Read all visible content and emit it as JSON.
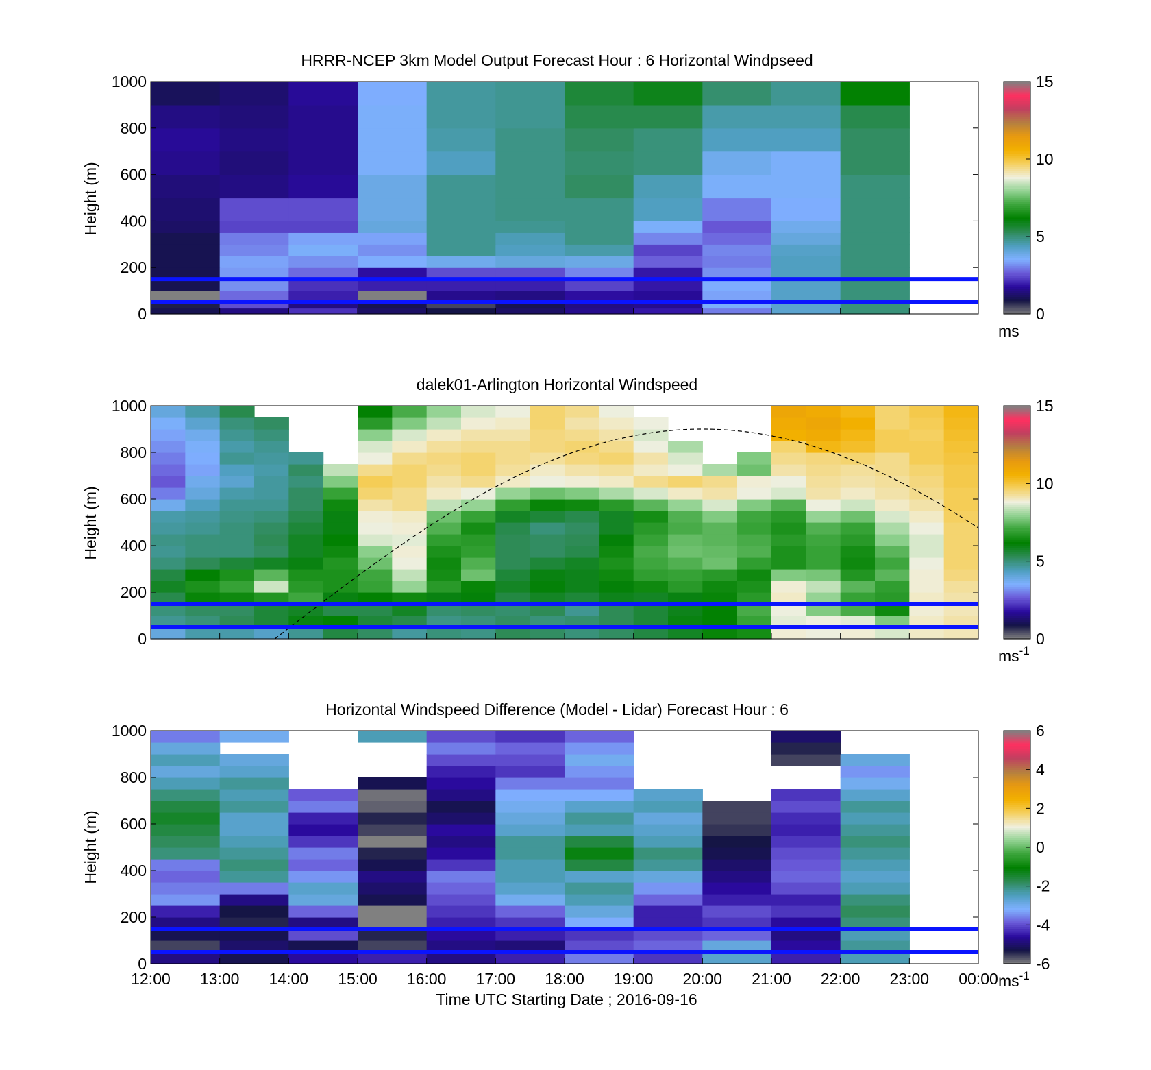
{
  "colormap": {
    "windspeed": [
      "#808080",
      "#141445",
      "#2a0a9e",
      "#6a5ad8",
      "#7fb0ff",
      "#4f9fc0",
      "#2e8b57",
      "#008000",
      "#3aa43a",
      "#8fd18f",
      "#f0f0e0",
      "#f5d060",
      "#f2b000",
      "#e89a10",
      "#b58040",
      "#c04060",
      "#ff3060",
      "#808080"
    ],
    "difference": [
      "#808080",
      "#141445",
      "#2a0a9e",
      "#6a5ad8",
      "#7fb0ff",
      "#4f9fc0",
      "#2e8b57",
      "#008000",
      "#3aa43a",
      "#8fd18f",
      "#f0f0e0",
      "#f5d060",
      "#f2b000",
      "#e89a10",
      "#b58040",
      "#c04060",
      "#ff3060",
      "#808080"
    ]
  },
  "reference_lines": {
    "color": "#0a14ff",
    "heights_m": [
      150,
      50
    ]
  },
  "chart_data": [
    {
      "type": "heatmap",
      "title": "HRRR-NCEP 3km Model Output   Forecast Hour : 6 Horizontal Windpseed",
      "ylabel": "Height (m)",
      "xlabel": "",
      "ylim": [
        0,
        1000
      ],
      "yticks": [
        "0",
        "200",
        "400",
        "600",
        "800",
        "1000"
      ],
      "xticks": [],
      "time_range_hours": [
        12,
        24
      ],
      "colorbar": {
        "range": [
          0,
          15
        ],
        "ticks": [
          "0",
          "5",
          "10",
          "15"
        ],
        "unit": "ms",
        "unit_sup": ""
      },
      "colormap": "windspeed",
      "layer_heights_m": [
        25,
        50,
        100,
        150,
        200,
        250,
        300,
        350,
        400,
        500,
        600,
        700,
        800,
        900,
        1000
      ],
      "times_utc": [
        "12:00",
        "13:00",
        "14:00",
        "15:00",
        "16:00",
        "17:00",
        "18:00",
        "19:00",
        "20:00",
        "21:00",
        "22:00"
      ],
      "values": [
        [
          1.0,
          1.5,
          2.2,
          1.2,
          0.9,
          1.2,
          1.6,
          1.9,
          3.0,
          4.2,
          5.0
        ],
        [
          0.8,
          2.5,
          1.5,
          1.0,
          0.5,
          1.0,
          1.5,
          1.6,
          3.6,
          4.2,
          5.0
        ],
        [
          0.0,
          2.8,
          2.0,
          0.0,
          1.6,
          1.5,
          1.8,
          1.7,
          3.4,
          4.3,
          5.0
        ],
        [
          1.0,
          3.2,
          2.2,
          2.0,
          2.0,
          2.0,
          2.4,
          1.9,
          3.5,
          4.3,
          5.0
        ],
        [
          1.0,
          3.3,
          2.8,
          1.8,
          2.5,
          2.5,
          3.1,
          1.9,
          3.2,
          4.4,
          5.0
        ],
        [
          1.0,
          3.4,
          3.2,
          3.5,
          3.8,
          4.0,
          3.9,
          2.7,
          3.0,
          4.4,
          5.0
        ],
        [
          1.0,
          3.1,
          3.6,
          3.2,
          4.8,
          4.4,
          4.6,
          2.4,
          3.1,
          4.3,
          5.0
        ],
        [
          1.0,
          3.0,
          3.4,
          3.4,
          4.8,
          4.5,
          4.9,
          3.1,
          2.8,
          4.0,
          5.0
        ],
        [
          1.2,
          2.4,
          2.4,
          4.0,
          4.8,
          4.8,
          4.9,
          3.6,
          2.6,
          3.8,
          5.0
        ],
        [
          1.3,
          2.5,
          2.5,
          3.9,
          4.8,
          4.9,
          4.9,
          4.4,
          3.0,
          3.5,
          5.0
        ],
        [
          1.4,
          1.5,
          1.7,
          3.9,
          4.8,
          4.9,
          5.2,
          4.5,
          3.6,
          3.6,
          5.0
        ],
        [
          1.6,
          1.4,
          1.6,
          3.6,
          4.4,
          4.9,
          5.1,
          5.0,
          3.8,
          3.6,
          5.2
        ],
        [
          1.7,
          1.5,
          1.6,
          3.6,
          4.6,
          4.9,
          5.2,
          5.0,
          4.4,
          4.4,
          5.2
        ],
        [
          1.5,
          1.4,
          1.6,
          3.6,
          4.7,
          4.8,
          5.4,
          5.4,
          4.6,
          4.6,
          5.4
        ],
        [
          1.1,
          1.3,
          1.7,
          3.5,
          4.7,
          4.8,
          5.6,
          5.9,
          5.1,
          4.8,
          6.2
        ]
      ]
    },
    {
      "type": "heatmap",
      "title": "dalek01-Arlington  Horizontal Windspeed",
      "ylabel": "Height (m)",
      "xlabel": "",
      "ylim": [
        0,
        1000
      ],
      "yticks": [
        "0",
        "200",
        "400",
        "600",
        "800",
        "1000"
      ],
      "xticks": [],
      "time_range_hours": [
        12,
        24
      ],
      "colorbar": {
        "range": [
          0,
          15
        ],
        "ticks": [
          "0",
          "5",
          "10",
          "15"
        ],
        "unit": "ms",
        "unit_sup": "-1"
      },
      "colormap": "windspeed",
      "layer_heights_m": [
        50,
        100,
        150,
        200,
        250,
        300,
        350,
        400,
        450,
        500,
        550,
        600,
        650,
        700,
        750,
        800,
        850,
        900,
        950,
        1000
      ],
      "times_utc": [
        "12:00",
        "12:30",
        "13:00",
        "13:30",
        "14:00",
        "14:30",
        "15:00",
        "15:30",
        "16:00",
        "16:30",
        "17:00",
        "17:30",
        "18:00",
        "18:30",
        "19:00",
        "19:30",
        "20:00",
        "20:30",
        "21:00",
        "21:30",
        "22:00",
        "22:30",
        "23:00",
        "23:30"
      ],
      "values": [
        [
          4.0,
          4.6,
          4.6,
          4.3,
          4.8,
          5.5,
          5.2,
          4.7,
          5.0,
          4.9,
          5.3,
          5.2,
          5.0,
          5.2,
          5.5,
          5.8,
          6.3,
          6.5,
          8.9,
          8.8,
          8.9,
          8.6,
          9.0,
          9.1
        ],
        [
          4.8,
          5.0,
          5.3,
          5.6,
          6.0,
          6.2,
          5.6,
          5.4,
          4.9,
          5.0,
          5.2,
          5.0,
          5.1,
          5.3,
          5.6,
          6.0,
          6.2,
          7.0,
          8.7,
          8.8,
          8.7,
          7.8,
          9.0,
          9.2
        ],
        [
          5.0,
          5.2,
          5.2,
          5.6,
          5.8,
          5.4,
          5.4,
          5.8,
          5.1,
          5.2,
          5.1,
          5.3,
          4.8,
          5.3,
          5.6,
          5.9,
          6.2,
          7.2,
          8.8,
          7.8,
          7.2,
          6.4,
          8.9,
          9.1
        ],
        [
          5.4,
          6.3,
          6.4,
          6.7,
          7.1,
          6.0,
          6.2,
          6.4,
          6.0,
          6.1,
          5.5,
          5.8,
          5.6,
          5.9,
          5.8,
          6.0,
          6.3,
          6.8,
          9.0,
          8.0,
          7.0,
          6.8,
          9.0,
          9.2
        ],
        [
          5.8,
          6.6,
          7.0,
          8.5,
          6.8,
          6.6,
          7.0,
          8.0,
          6.8,
          6.3,
          5.8,
          6.1,
          5.9,
          6.1,
          6.4,
          6.8,
          6.4,
          6.6,
          8.9,
          8.4,
          7.4,
          6.9,
          8.9,
          9.3
        ],
        [
          5.5,
          6.2,
          6.6,
          7.4,
          6.6,
          6.6,
          7.1,
          8.4,
          6.5,
          7.6,
          5.6,
          6.0,
          5.9,
          6.4,
          6.9,
          7.0,
          6.8,
          6.4,
          7.8,
          7.7,
          6.7,
          7.4,
          8.9,
          9.5
        ],
        [
          5.0,
          5.3,
          5.6,
          5.8,
          6.0,
          6.7,
          7.6,
          8.8,
          6.4,
          7.3,
          5.3,
          5.6,
          5.8,
          6.6,
          7.1,
          7.3,
          7.6,
          6.9,
          6.6,
          7.0,
          6.4,
          7.1,
          8.8,
          9.6
        ],
        [
          4.8,
          5.0,
          5.0,
          5.2,
          5.8,
          6.4,
          7.9,
          8.9,
          6.6,
          6.9,
          5.3,
          5.2,
          5.4,
          6.4,
          7.2,
          7.6,
          7.5,
          7.3,
          6.6,
          7.0,
          6.5,
          7.4,
          8.6,
          9.6
        ],
        [
          4.9,
          5.0,
          5.0,
          5.3,
          5.8,
          6.2,
          8.6,
          8.7,
          6.9,
          6.8,
          5.3,
          5.2,
          5.3,
          6.1,
          7.0,
          7.5,
          7.4,
          7.2,
          6.8,
          7.1,
          6.8,
          7.9,
          8.6,
          9.6
        ],
        [
          4.7,
          4.8,
          5.0,
          5.2,
          5.6,
          6.0,
          8.8,
          8.9,
          7.3,
          6.5,
          5.4,
          5.0,
          5.2,
          5.8,
          6.8,
          7.2,
          7.4,
          7.0,
          6.6,
          7.3,
          7.0,
          8.2,
          8.8,
          9.6
        ],
        [
          4.6,
          4.7,
          4.9,
          5.0,
          5.4,
          6.0,
          8.9,
          9.0,
          7.6,
          7.0,
          5.8,
          5.6,
          5.4,
          5.8,
          6.5,
          7.3,
          7.8,
          7.1,
          6.8,
          8.0,
          7.6,
          8.6,
          9.0,
          9.7
        ],
        [
          3.8,
          4.4,
          4.8,
          4.8,
          5.2,
          6.4,
          9.2,
          9.4,
          8.4,
          8.0,
          6.9,
          6.3,
          6.4,
          6.8,
          7.4,
          8.0,
          8.6,
          7.8,
          7.3,
          8.8,
          8.5,
          9.0,
          9.2,
          9.8
        ],
        [
          3.0,
          4.0,
          4.6,
          4.7,
          5.2,
          7.0,
          9.6,
          9.4,
          9.0,
          8.8,
          8.0,
          7.6,
          7.8,
          8.2,
          8.6,
          9.0,
          9.2,
          8.8,
          8.6,
          9.2,
          9.0,
          9.2,
          9.4,
          9.8
        ],
        [
          2.6,
          3.8,
          4.2,
          4.7,
          5.0,
          7.8,
          9.8,
          9.6,
          9.2,
          9.4,
          9.0,
          8.8,
          8.9,
          9.0,
          9.4,
          9.6,
          9.4,
          8.9,
          8.8,
          9.3,
          9.2,
          9.3,
          9.5,
          9.9
        ],
        [
          2.8,
          3.4,
          4.4,
          4.6,
          5.2,
          8.4,
          9.4,
          9.6,
          9.4,
          9.6,
          9.3,
          9.0,
          9.2,
          9.3,
          9.0,
          8.8,
          8.2,
          7.6,
          9.2,
          9.4,
          9.3,
          9.4,
          9.6,
          9.9
        ],
        [
          3.0,
          3.5,
          4.8,
          4.7,
          4.8,
          null,
          8.8,
          9.4,
          9.5,
          9.6,
          9.4,
          9.3,
          9.5,
          9.6,
          9.2,
          8.6,
          null,
          7.8,
          9.4,
          9.5,
          9.6,
          9.4,
          9.8,
          10.0
        ],
        [
          3.2,
          3.6,
          4.6,
          4.8,
          null,
          null,
          8.6,
          9.0,
          9.3,
          9.4,
          9.4,
          9.5,
          9.6,
          9.4,
          8.8,
          8.2,
          null,
          null,
          9.6,
          10.4,
          10.2,
          9.8,
          9.8,
          10.1
        ],
        [
          3.4,
          3.8,
          4.8,
          5.0,
          null,
          null,
          7.9,
          8.6,
          9.0,
          9.2,
          9.2,
          9.5,
          9.4,
          9.2,
          8.6,
          null,
          null,
          null,
          10.6,
          10.8,
          10.4,
          9.8,
          9.7,
          10.2
        ],
        [
          3.6,
          4.2,
          5.0,
          5.2,
          null,
          null,
          6.8,
          7.8,
          8.4,
          8.9,
          9.0,
          9.6,
          9.2,
          9.0,
          8.8,
          null,
          null,
          null,
          10.8,
          11.0,
          10.6,
          9.6,
          9.8,
          10.3
        ],
        [
          4.0,
          4.6,
          5.4,
          null,
          null,
          null,
          6.2,
          7.2,
          8.0,
          8.6,
          8.8,
          9.6,
          9.4,
          8.8,
          null,
          null,
          null,
          null,
          11.0,
          10.8,
          10.4,
          9.6,
          9.9,
          10.4
        ]
      ],
      "curve": {
        "style": "dashed",
        "height_m_max": 900,
        "peak_time_utc": "20:00",
        "start_time_utc": "13:48",
        "height_m_at_end": 470
      }
    },
    {
      "type": "heatmap",
      "title": "Horizontal Windspeed Difference (Model - Lidar) Forecast Hour : 6",
      "ylabel": "Height (m)",
      "xlabel": "Time UTC  Starting Date ; 2016-09-16",
      "ylim": [
        0,
        1000
      ],
      "yticks": [
        "0",
        "200",
        "400",
        "600",
        "800",
        "1000"
      ],
      "xticks": [
        "12:00",
        "13:00",
        "14:00",
        "15:00",
        "16:00",
        "17:00",
        "18:00",
        "19:00",
        "20:00",
        "21:00",
        "22:00",
        "23:00",
        "00:00"
      ],
      "time_range_hours": [
        12,
        24
      ],
      "colorbar": {
        "range": [
          -6,
          6
        ],
        "ticks": [
          "-6",
          "-4",
          "-2",
          "0",
          "2",
          "4",
          "6"
        ],
        "unit": "ms",
        "unit_sup": "-1"
      },
      "colormap": "difference",
      "layer_heights_m": [
        50,
        100,
        150,
        200,
        250,
        300,
        350,
        400,
        450,
        500,
        550,
        600,
        650,
        700,
        750,
        800,
        850,
        900,
        950,
        1000
      ],
      "times_utc": [
        "12:00",
        "13:00",
        "14:00",
        "15:00",
        "16:00",
        "17:00",
        "18:00",
        "19:00",
        "20:00",
        "21:00",
        "22:00"
      ],
      "values": [
        [
          -4.8,
          -5.2,
          -4.6,
          -4.4,
          -4.8,
          -4.4,
          -3.6,
          -4.2,
          -2.6,
          -4.4,
          -2.4
        ],
        [
          -5.6,
          -5.0,
          -5.2,
          -5.6,
          -4.8,
          -4.9,
          -4.0,
          -3.8,
          -2.8,
          -4.6,
          -2.2
        ],
        [
          -5.2,
          -5.2,
          -4.0,
          -5.4,
          -4.6,
          -4.4,
          -4.2,
          -4.0,
          -3.8,
          -4.8,
          -2.4
        ],
        [
          -4.8,
          -5.4,
          -4.8,
          -6.0,
          -4.4,
          -4.2,
          -3.2,
          -4.4,
          -4.2,
          -4.6,
          -2.0
        ],
        [
          -4.4,
          -5.3,
          -3.8,
          -6.0,
          -4.2,
          -3.8,
          -2.8,
          -4.4,
          -4.0,
          -4.2,
          -1.8
        ],
        [
          -3.4,
          -4.8,
          -2.8,
          -5.2,
          -4.0,
          -3.0,
          -2.4,
          -3.8,
          -4.4,
          -4.4,
          -2.0
        ],
        [
          -3.6,
          -3.6,
          -2.6,
          -5.0,
          -3.8,
          -2.6,
          -2.2,
          -3.4,
          -4.6,
          -4.0,
          -2.4
        ],
        [
          -3.8,
          -2.2,
          -3.4,
          -4.8,
          -3.6,
          -2.4,
          -2.6,
          -2.8,
          -4.8,
          -3.8,
          -2.6
        ],
        [
          -3.6,
          -2.0,
          -3.8,
          -5.2,
          -4.2,
          -2.4,
          -1.6,
          -2.2,
          -5.0,
          -3.9,
          -2.4
        ],
        [
          -2.0,
          -2.2,
          -3.6,
          -5.4,
          -4.6,
          -2.2,
          -1.2,
          -2.0,
          -5.2,
          -4.0,
          -2.2
        ],
        [
          -1.8,
          -2.4,
          -4.2,
          -6.0,
          -4.8,
          -2.2,
          -1.6,
          -2.4,
          -5.3,
          -4.2,
          -2.0
        ],
        [
          -1.6,
          -2.6,
          -4.6,
          -5.6,
          -4.6,
          -2.6,
          -2.4,
          -2.6,
          -5.5,
          -4.4,
          -2.2
        ],
        [
          -1.4,
          -2.6,
          -4.4,
          -5.4,
          -5.0,
          -2.8,
          -2.2,
          -2.8,
          -5.6,
          -4.3,
          -2.4
        ],
        [
          -1.6,
          -2.2,
          -3.6,
          -5.8,
          -5.2,
          -3.0,
          -2.6,
          -2.4,
          -5.6,
          -4.0,
          -2.2
        ],
        [
          -2.0,
          -2.4,
          -3.9,
          -5.9,
          -4.8,
          -3.2,
          -3.2,
          -2.6,
          null,
          -4.2,
          -2.6
        ],
        [
          -2.4,
          -2.2,
          null,
          -5.2,
          -4.6,
          -3.6,
          -3.6,
          null,
          null,
          null,
          -3.0
        ],
        [
          -2.8,
          -2.6,
          null,
          null,
          -4.4,
          -4.2,
          -3.4,
          null,
          null,
          null,
          -3.4
        ],
        [
          -2.4,
          -2.8,
          null,
          null,
          -4.0,
          -4.0,
          -3.0,
          null,
          null,
          -5.6,
          -2.8
        ],
        [
          -2.8,
          null,
          null,
          null,
          -3.6,
          -3.8,
          -3.4,
          null,
          null,
          -5.4,
          null
        ],
        [
          -3.6,
          -3.0,
          null,
          -2.4,
          -4.0,
          -4.2,
          -3.8,
          null,
          null,
          -5.0,
          null
        ]
      ]
    }
  ]
}
